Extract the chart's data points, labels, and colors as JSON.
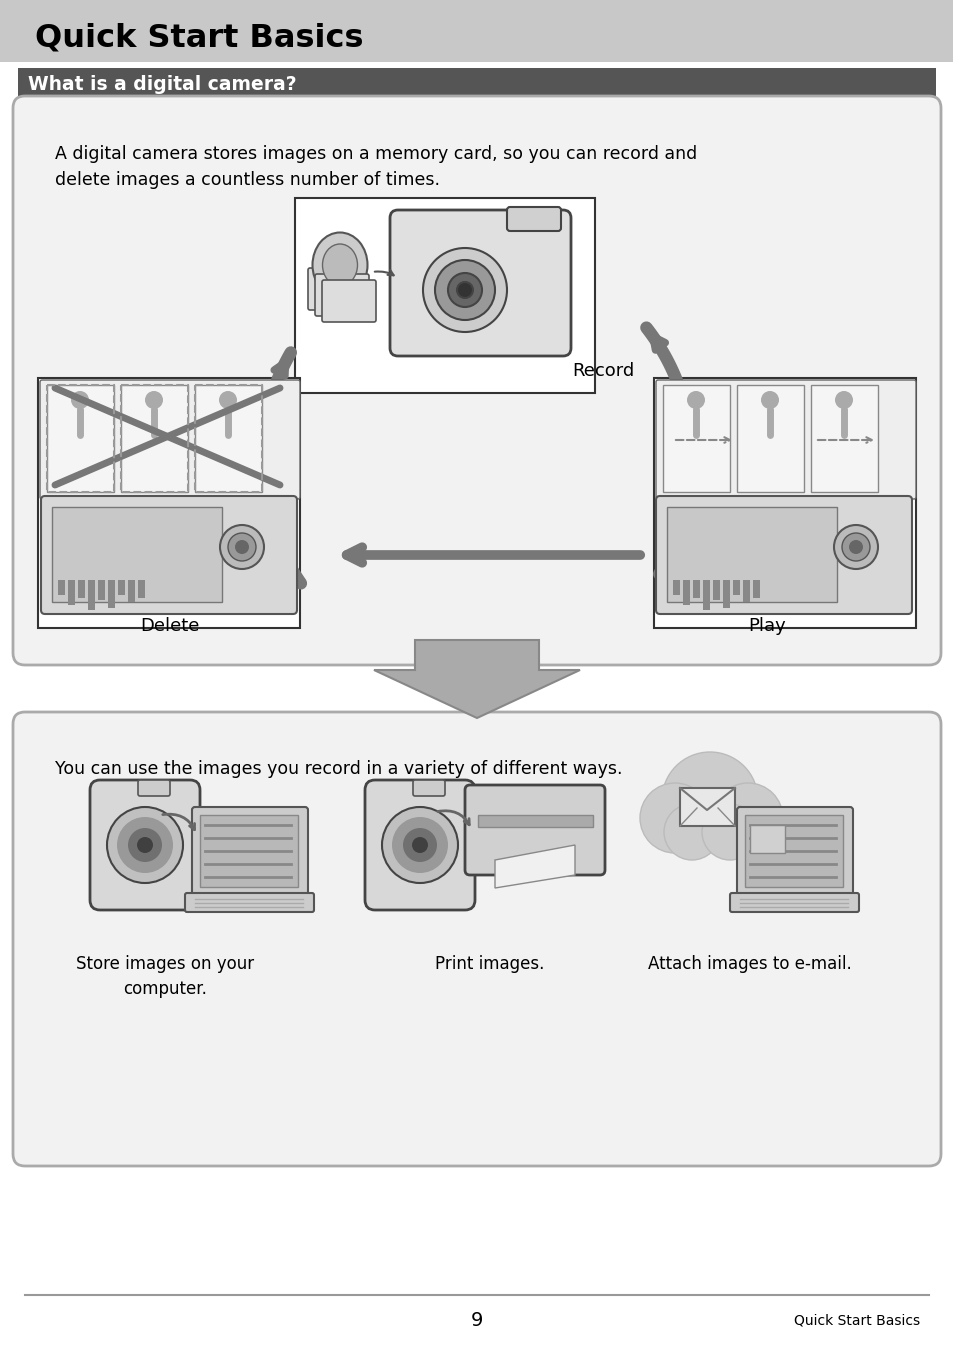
{
  "page_bg": "#ffffff",
  "header_bg": "#c8c8c8",
  "header_text": "Quick Start Basics",
  "header_text_color": "#000000",
  "subheader_bg": "#555555",
  "subheader_text": "What is a digital camera?",
  "subheader_text_color": "#ffffff",
  "box1_bg": "#f2f2f2",
  "box1_border": "#aaaaaa",
  "box1_text": "A digital camera stores images on a memory card, so you can record and\ndelete images a countless number of times.",
  "box2_bg": "#f2f2f2",
  "box2_border": "#aaaaaa",
  "box2_text": "You can use the images you record in a variety of different ways.",
  "label_record": "Record",
  "label_delete": "Delete",
  "label_play": "Play",
  "label_store": "Store images on your\ncomputer.",
  "label_print": "Print images.",
  "label_attach": "Attach images to e-mail.",
  "footer_page": "9",
  "footer_right": "Quick Start Basics",
  "footer_line_color": "#999999",
  "arrow_color": "#777777",
  "arrow_color_dark": "#555555"
}
